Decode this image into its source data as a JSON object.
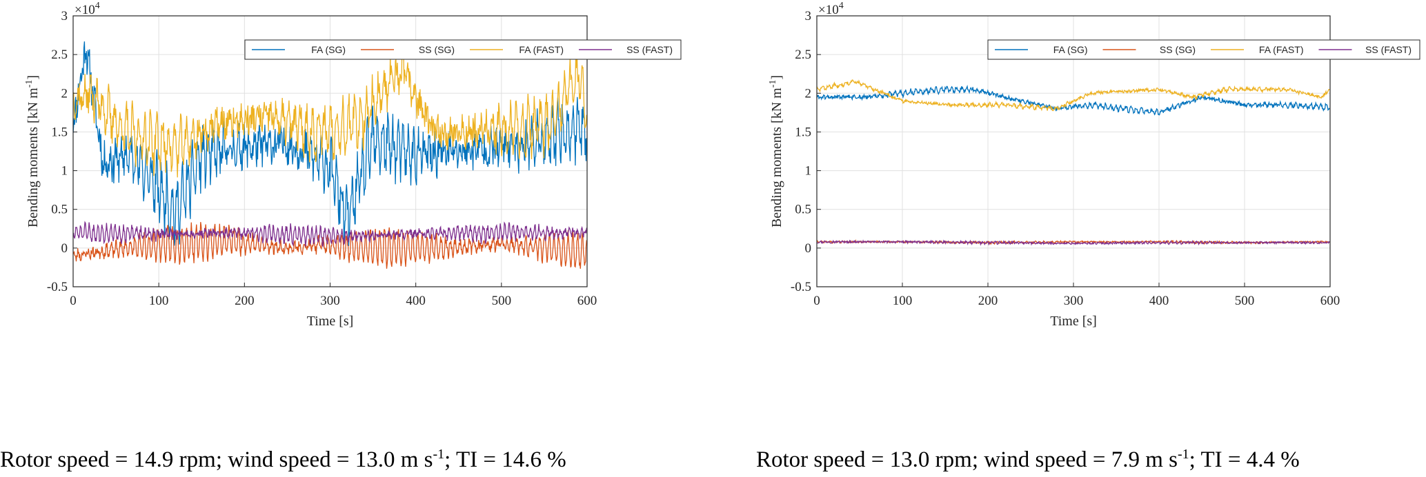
{
  "colors": {
    "fa_sg": "#0072BD",
    "ss_sg": "#D95319",
    "fa_fast": "#EDB120",
    "ss_fast": "#7E2F8E",
    "grid": "#e0e0e0",
    "axis": "#262626"
  },
  "chart_data": [
    {
      "type": "line",
      "xlabel": "Time [s]",
      "ylabel": "Bending moments [kN m",
      "ylabel_sup": "-1",
      "ylabel_end": "]",
      "exponent_label": "×10",
      "exponent_sup": "4",
      "xlim": [
        0,
        600
      ],
      "ylim": [
        -0.5,
        3
      ],
      "xticks": [
        "0",
        "100",
        "200",
        "300",
        "400",
        "500",
        "600"
      ],
      "yticks": [
        "-0.5",
        "0",
        "0.5",
        "1",
        "1.5",
        "2",
        "2.5",
        "3"
      ],
      "grid": true,
      "legend_position": "top-right",
      "caption": {
        "rotor": "Rotor speed = 14.9 rpm; wind speed = 13.0 m s",
        "sup": "-1",
        "rest": "; TI = 14.6 %"
      },
      "series": [
        {
          "name": "FA (SG)",
          "color_key": "fa_sg",
          "mean": 1.3,
          "amp": 0.32,
          "noise": 0.22,
          "period": 6,
          "seed": 11,
          "x": [
            0,
            15,
            35,
            70,
            120,
            150,
            200,
            250,
            300,
            320,
            350,
            400,
            450,
            500,
            550,
            600
          ],
          "y": [
            1.6,
            2.6,
            1.1,
            1.2,
            0.45,
            1.2,
            1.3,
            1.35,
            1.05,
            0.35,
            1.4,
            1.2,
            1.25,
            1.3,
            1.4,
            1.6
          ]
        },
        {
          "name": "SS (SG)",
          "color_key": "ss_sg",
          "mean": 0.02,
          "amp": 0.22,
          "noise": 0.06,
          "period": 5.5,
          "seed": 23,
          "x": [
            0,
            60,
            120,
            180,
            250,
            300,
            330,
            380,
            430,
            500,
            550,
            600
          ],
          "y": [
            -0.1,
            0.0,
            0.05,
            0.1,
            0.0,
            0.05,
            0.0,
            0.0,
            0.0,
            0.05,
            0.0,
            -0.05
          ]
        },
        {
          "name": "FA (FAST)",
          "color_key": "fa_fast",
          "mean": 1.55,
          "amp": 0.3,
          "noise": 0.18,
          "period": 7,
          "seed": 37,
          "x": [
            0,
            20,
            60,
            120,
            170,
            230,
            280,
            330,
            385,
            420,
            480,
            560,
            590,
            600
          ],
          "y": [
            1.9,
            2.0,
            1.5,
            1.3,
            1.6,
            1.7,
            1.5,
            1.6,
            2.3,
            1.5,
            1.5,
            1.6,
            2.3,
            1.7
          ]
        },
        {
          "name": "SS (FAST)",
          "color_key": "ss_fast",
          "mean": 0.18,
          "amp": 0.1,
          "noise": 0.05,
          "period": 5,
          "seed": 51,
          "x": [
            0,
            100,
            200,
            300,
            400,
            500,
            600
          ],
          "y": [
            0.2,
            0.18,
            0.2,
            0.15,
            0.18,
            0.2,
            0.2
          ]
        }
      ]
    },
    {
      "type": "line",
      "xlabel": "Time [s]",
      "ylabel": "Bending moments [kN m",
      "ylabel_sup": "-1",
      "ylabel_end": "]",
      "exponent_label": "×10",
      "exponent_sup": "4",
      "xlim": [
        0,
        600
      ],
      "ylim": [
        -0.5,
        3
      ],
      "xticks": [
        "0",
        "100",
        "200",
        "300",
        "400",
        "500",
        "600"
      ],
      "yticks": [
        "-0.5",
        "0",
        "0.5",
        "1",
        "1.5",
        "2",
        "2.5",
        "3"
      ],
      "grid": true,
      "legend_position": "top-right",
      "caption": {
        "rotor": "Rotor speed = 13.0 rpm; wind speed = 7.9 m s",
        "sup": "-1",
        "rest": "; TI = 4.4 %"
      },
      "series": [
        {
          "name": "FA (SG)",
          "color_key": "fa_sg",
          "mean": 0,
          "amp": 0.03,
          "noise": 0.025,
          "period": 6,
          "seed": 61,
          "x": [
            0,
            60,
            100,
            150,
            180,
            220,
            280,
            320,
            360,
            400,
            450,
            500,
            550,
            600
          ],
          "y": [
            1.95,
            1.95,
            2.0,
            2.05,
            2.05,
            1.95,
            1.8,
            1.85,
            1.8,
            1.75,
            1.95,
            1.85,
            1.85,
            1.82
          ]
        },
        {
          "name": "SS (SG)",
          "color_key": "ss_sg",
          "mean": 0,
          "amp": 0.01,
          "noise": 0.01,
          "period": 5,
          "seed": 71,
          "x": [
            0,
            100,
            200,
            300,
            400,
            500,
            600
          ],
          "y": [
            0.08,
            0.08,
            0.07,
            0.08,
            0.08,
            0.07,
            0.08
          ]
        },
        {
          "name": "FA (FAST)",
          "color_key": "fa_fast",
          "mean": 0,
          "amp": 0.02,
          "noise": 0.02,
          "period": 7,
          "seed": 83,
          "x": [
            0,
            45,
            100,
            160,
            220,
            280,
            320,
            400,
            440,
            480,
            550,
            590,
            600
          ],
          "y": [
            2.05,
            2.15,
            1.9,
            1.85,
            1.85,
            1.8,
            2.0,
            2.05,
            1.95,
            2.05,
            2.05,
            1.95,
            2.05
          ]
        },
        {
          "name": "SS (FAST)",
          "color_key": "ss_fast",
          "mean": 0,
          "amp": 0.012,
          "noise": 0.012,
          "period": 5,
          "seed": 97,
          "x": [
            0,
            100,
            200,
            300,
            400,
            500,
            600
          ],
          "y": [
            0.08,
            0.08,
            0.07,
            0.06,
            0.07,
            0.07,
            0.07
          ]
        }
      ]
    }
  ]
}
